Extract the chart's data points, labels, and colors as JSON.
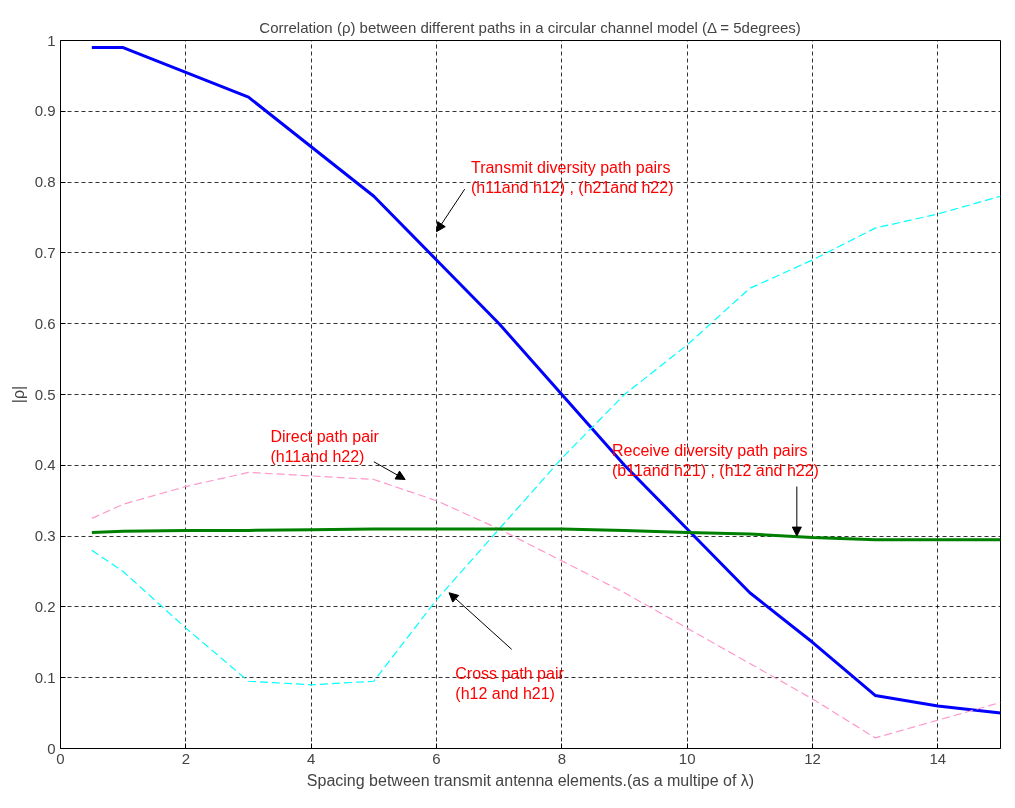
{
  "chart_data": {
    "type": "line",
    "title": "Correlation (ρ) between different paths in a circular channel model (Δ = 5degrees)",
    "xlabel": "Spacing between transmit antenna elements.(as a multipe of λ)",
    "ylabel": "|ρ|",
    "x": [
      0.5,
      1,
      2,
      3,
      4,
      5,
      6,
      7,
      8,
      9,
      10,
      11,
      12,
      13,
      14,
      15
    ],
    "series": [
      {
        "color": "#0000ff",
        "line_style": "solid",
        "values": [
          0.99,
          0.99,
          0.955,
          0.92,
          0.85,
          0.78,
          0.69,
          0.6,
          0.5,
          0.4,
          0.31,
          0.22,
          0.15,
          0.075,
          0.06,
          0.05
        ]
      },
      {
        "color": "#00ffff",
        "line_style": "dashed",
        "values": [
          0.28,
          0.25,
          0.17,
          0.095,
          0.09,
          0.095,
          0.21,
          0.31,
          0.41,
          0.5,
          0.57,
          0.65,
          0.69,
          0.735,
          0.755,
          0.78
        ]
      },
      {
        "color": "#ff99cc",
        "line_style": "dashed",
        "values": [
          0.325,
          0.345,
          0.37,
          0.39,
          0.385,
          0.38,
          0.35,
          0.31,
          0.265,
          0.22,
          0.17,
          0.12,
          0.07,
          0.015,
          0.04,
          0.065
        ]
      },
      {
        "color": "#008000",
        "line_style": "solid",
        "values": [
          0.305,
          0.307,
          0.308,
          0.308,
          0.309,
          0.31,
          0.31,
          0.31,
          0.31,
          0.308,
          0.305,
          0.303,
          0.298,
          0.295,
          0.295,
          0.295
        ]
      }
    ],
    "annotations": [
      "Transmit diversity path pairs\n(h11and h12) , (h21and h22)",
      "Direct path pair\n(h11and h22)",
      {
        "text": "Receive diversity path pairs\n(b11and h21) , (h12 and h22)",
        "x": 11.75,
        "y": 0.3
      },
      "Cross path pair\n(h12 and h21)"
    ],
    "xlim": [
      0,
      15
    ],
    "ylim": [
      0,
      1
    ],
    "xticks": [
      0,
      2,
      4,
      6,
      8,
      10,
      12,
      14
    ],
    "yticks": [
      0,
      0.1,
      0.2,
      0.3,
      0.4,
      0.5,
      0.6,
      0.7,
      0.8,
      0.9,
      1
    ],
    "grid": true
  }
}
